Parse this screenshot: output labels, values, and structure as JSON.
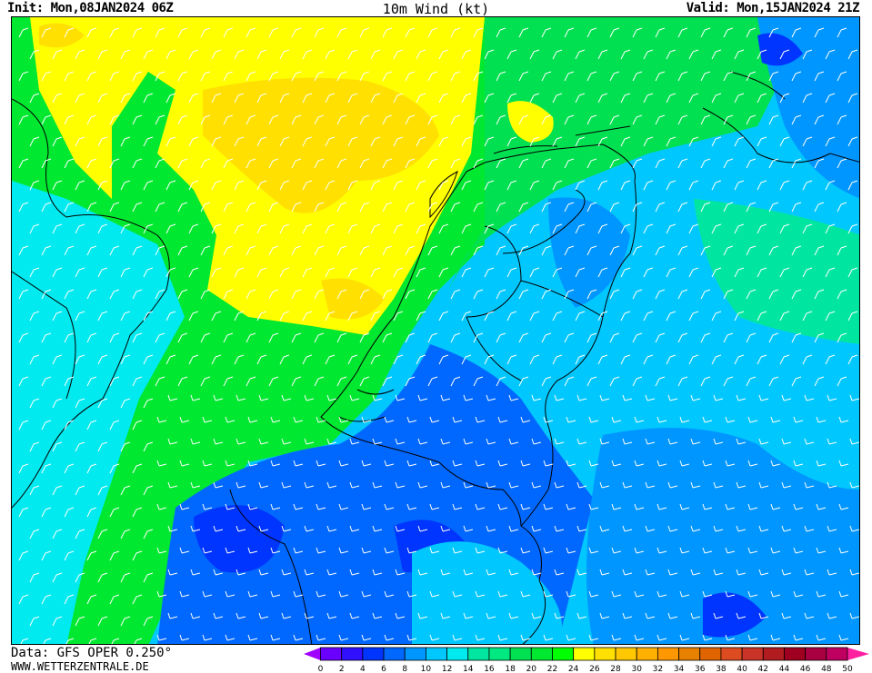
{
  "header": {
    "init": "Init: Mon,08JAN2024 06Z",
    "title": "10m Wind (kt)",
    "valid": "Valid: Mon,15JAN2024 21Z"
  },
  "footer": {
    "data_source": "Data: GFS OPER 0.250°",
    "website": "WWW.WETTERZENTRALE.DE"
  },
  "legend": {
    "ticks": [
      "0",
      "2",
      "4",
      "6",
      "8",
      "10",
      "12",
      "14",
      "16",
      "18",
      "20",
      "22",
      "24",
      "26",
      "28",
      "30",
      "32",
      "34",
      "36",
      "38",
      "40",
      "42",
      "44",
      "46",
      "48",
      "50"
    ],
    "colors": [
      "#6a00ff",
      "#3010ff",
      "#0034ff",
      "#0068ff",
      "#0096ff",
      "#00c8ff",
      "#00eaf0",
      "#00e6a0",
      "#00e880",
      "#00e050",
      "#00e830",
      "#00ff00",
      "#ffff00",
      "#ffe000",
      "#ffc800",
      "#ffb000",
      "#ff9800",
      "#e88000",
      "#e06400",
      "#dc4c20",
      "#c83428",
      "#b01c20",
      "#a00020",
      "#a80040",
      "#c00060"
    ],
    "low_arrow_color": "#a000ff",
    "high_arrow_color": "#ff20a0"
  },
  "map": {
    "field": "10m wind speed (kt)",
    "barb_color": "#ffffff",
    "border_color": "#000000"
  }
}
